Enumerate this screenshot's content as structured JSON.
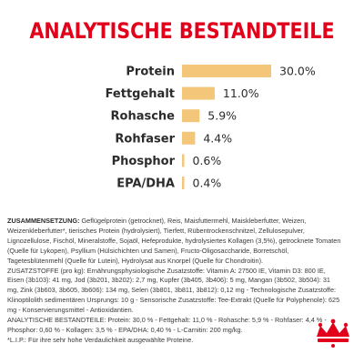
{
  "title": "ANALYTISCHE BESTANDTEILE",
  "colors": {
    "title": "#e2001a",
    "bar": "#f3c67a",
    "logo": "#e2001a"
  },
  "chart_data": {
    "type": "bar",
    "orientation": "horizontal",
    "categories": [
      "Protein",
      "Fettgehalt",
      "Rohasche",
      "Rohfaser",
      "Phosphor",
      "EPA/DHA"
    ],
    "values": [
      30.0,
      11.0,
      5.9,
      4.4,
      0.6,
      0.4
    ],
    "value_labels": [
      "30.0%",
      "11.0%",
      "5.9%",
      "4.4%",
      "0.6%",
      "0.4%"
    ],
    "title": "ANALYTISCHE BESTANDTEILE",
    "xlim": [
      0,
      30
    ],
    "grid": false
  },
  "composition": {
    "p1_heading": "ZUSAMMENSETZUNG:",
    "p1_text": " Geflügelprotein (getrocknet), Reis, Maisfuttermehl, Maiskleberfutter, Weizen, Weizenkleberfutter*, tierisches Protein (hydrolysiert), Tierfett, Rübentrockenschnitzel, Zellulosepulver, Lignozellulose, Fischöl, Mineralstoffe, Sojaöl, Hefeprodukte, hydrolysiertes Kollagen (3,5%), getrocknete Tomaten (Quelle für Lykopen), Psyllium (Hülsichichten und Samen), Fructo-Oligosaccharide, Borretschöl, Tagetesblütenmehl (Quelle für Lutein), Hydrolysat aus Knorpel (Quelle für Chondroitin).",
    "p2_heading": "ZUSATZSTOFFE",
    "p2_text": " (pro kg): Ernährungsphysiologische Zusatzstoffe: Vitamin A: 27500 IE, Vitamin D3: 800 IE, Eisen (3b103): 41 mg, Jod (3b201, 3b202): 2,7 mg, Kupfer (3b405, 3b406): 5 mg, Mangan (3b502, 3b504): 31 mg, Zink (3b603, 3b605, 3b606): 134 mg, Selen (3b801, 3b811, 3b812): 0,12 mg - Technologische Zusatzstoffe: Klinoptilolith sedimentären Ursprungs: 10 g - Sensorische Zusatzstoffe: Tee-Extrakt (Quelle für Polyphenole): 625 mg - Konservierungsmittel - Antioxidantien.",
    "p3_heading": "ANALYTISCHE BESTANDTEILE:",
    "p3_text": " Protein: 30,0 % - Fettgehalt: 11,0 % - Rohasche: 5,9 % - Rohfaser: 4,4 % - Phosphor: 0,60 % - Kollagen: 3,5 % - EPA/DHA: 0,40 % - L-Carnitin: 200 mg/kg.",
    "p4_text": "*L.I.P.: Für ihre sehr hohe Verdaulichkeit ausgewählte Proteine."
  },
  "logo": {
    "icon": "crown-icon"
  }
}
